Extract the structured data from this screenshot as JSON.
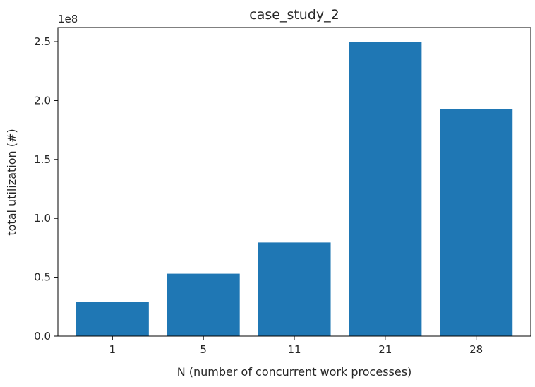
{
  "chart_data": {
    "type": "bar",
    "title": "case_study_2",
    "xlabel": "N (number of concurrent work processes)",
    "ylabel": "total utilization (#)",
    "y_offset_label": "1e8",
    "y_scale": 100000000,
    "categories": [
      "1",
      "5",
      "11",
      "21",
      "28"
    ],
    "values": [
      29000000,
      53000000,
      79500000,
      249500000,
      192500000
    ],
    "ylim": [
      0,
      262000000
    ],
    "yticks": [
      0,
      50000000,
      100000000,
      150000000,
      200000000,
      250000000
    ],
    "ytick_labels": [
      "0.0",
      "0.5",
      "1.0",
      "1.5",
      "2.0",
      "2.5"
    ],
    "grid": false,
    "legend": "none",
    "bar_color": "#1f77b4"
  }
}
